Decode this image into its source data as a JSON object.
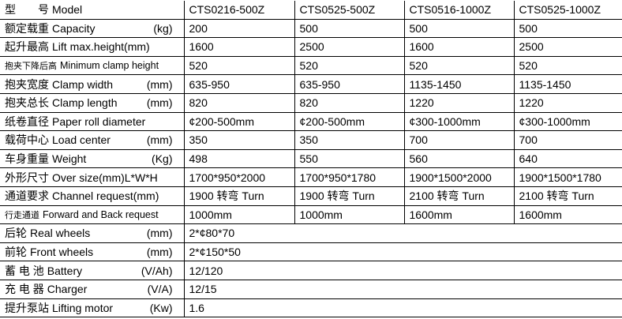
{
  "columns": [
    "CTS0216-500Z",
    "CTS0525-500Z",
    "CTS0516-1000Z",
    "CTS0525-1000Z"
  ],
  "rows": [
    {
      "cn": "型　　号",
      "en": "Model",
      "unit": "",
      "values": [
        "CTS0216-500Z",
        "CTS0525-500Z",
        "CTS0516-1000Z",
        "CTS0525-1000Z"
      ]
    },
    {
      "cn": "额定载重",
      "en": "Capacity",
      "unit": "(kg)",
      "values": [
        "200",
        "500",
        "500",
        "500"
      ]
    },
    {
      "cn": "起升最高",
      "en": "Lift max.height(mm)",
      "unit": "",
      "values": [
        "1600",
        "2500",
        "1600",
        "2500"
      ]
    },
    {
      "cn": "抱夹下降后高",
      "en": "Minimum clamp height",
      "unit": "",
      "small": true,
      "values": [
        "520",
        "520",
        "520",
        "520"
      ]
    },
    {
      "cn": "抱夹宽度",
      "en": "Clamp width",
      "unit": "(mm)",
      "values": [
        "635-950",
        "635-950",
        "1135-1450",
        "1135-1450"
      ]
    },
    {
      "cn": "抱夹总长",
      "en": "Clamp length",
      "unit": "(mm)",
      "values": [
        "820",
        "820",
        "1220",
        "1220"
      ]
    },
    {
      "cn": "纸卷直径",
      "en": "Paper roll diameter",
      "unit": "",
      "values": [
        "¢200-500mm",
        "¢200-500mm",
        "¢300-1000mm",
        "¢300-1000mm"
      ]
    },
    {
      "cn": "载荷中心",
      "en": "Load center",
      "unit": "(mm)",
      "values": [
        "350",
        "350",
        "700",
        "700"
      ]
    },
    {
      "cn": "车身重量",
      "en": "Weight",
      "unit": "(Kg)",
      "values": [
        "498",
        "550",
        "560",
        "640"
      ]
    },
    {
      "cn": "外形尺寸",
      "en": "Over size(mm)L*W*H",
      "unit": "",
      "values": [
        "1700*950*2000",
        "1700*950*1780",
        "1900*1500*2000",
        "1900*1500*1780"
      ]
    },
    {
      "cn": "通道要求",
      "en": "Channel request(mm)",
      "unit": "",
      "values": [
        "1900 转弯 Turn",
        "1900 转弯 Turn",
        "2100 转弯 Turn",
        "2100 转弯 Turn"
      ]
    },
    {
      "cn": "行走通道",
      "en": "Forward and Back request",
      "unit": "",
      "small": true,
      "values": [
        "1000mm",
        "1000mm",
        "1600mm",
        "1600mm"
      ]
    },
    {
      "cn": "后轮",
      "en": "Real wheels",
      "unit": "(mm)",
      "span": "2*¢80*70"
    },
    {
      "cn": "前轮",
      "en": "Front wheels",
      "unit": "(mm)",
      "span": "2*¢150*50"
    },
    {
      "cn": "蓄 电 池",
      "en": "Battery",
      "unit": "(V/Ah)",
      "span": "12/120"
    },
    {
      "cn": "充 电 器",
      "en": "Charger",
      "unit": "(V/A)",
      "span": "12/15"
    },
    {
      "cn": "提升泵站",
      "en": "Lifting motor",
      "unit": "(Kw)",
      "span": "1.6"
    }
  ]
}
